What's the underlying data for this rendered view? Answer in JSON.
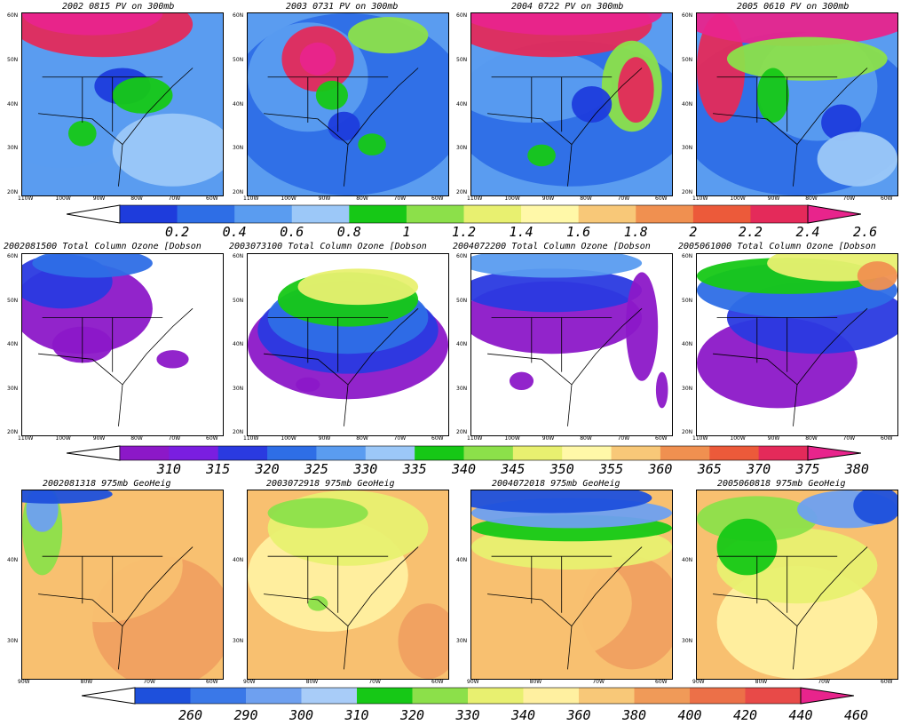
{
  "rows": [
    {
      "id": "pv",
      "panels": [
        {
          "title": "2002 0815 PV on 300mb",
          "lat_labels": [
            "60N",
            "50N",
            "40N",
            "30N",
            "20N"
          ],
          "lon_labels": [
            "110W",
            "100W",
            "90W",
            "80W",
            "70W",
            "60W"
          ]
        },
        {
          "title": "2003 0731 PV on 300mb",
          "lat_labels": [
            "60N",
            "50N",
            "40N",
            "30N",
            "20N"
          ],
          "lon_labels": [
            "110W",
            "100W",
            "90W",
            "80W",
            "70W",
            "60W"
          ]
        },
        {
          "title": "2004 0722 PV on 300mb",
          "lat_labels": [
            "60N",
            "50N",
            "40N",
            "30N",
            "20N"
          ],
          "lon_labels": [
            "110W",
            "100W",
            "90W",
            "80W",
            "70W",
            "60W"
          ]
        },
        {
          "title": "2005 0610 PV on 300mb",
          "lat_labels": [
            "60N",
            "50N",
            "40N",
            "30N",
            "20N"
          ],
          "lon_labels": [
            "110W",
            "100W",
            "90W",
            "80W",
            "70W",
            "60W"
          ]
        }
      ],
      "colorbar": {
        "labels": [
          "0.2",
          "0.4",
          "0.6",
          "0.8",
          "1",
          "1.2",
          "1.4",
          "1.6",
          "1.8",
          "2",
          "2.2",
          "2.4",
          "2.6"
        ],
        "colors": [
          "#ffffff",
          "#1e3cdc",
          "#2e6ee6",
          "#5a9cf0",
          "#9cc8f8",
          "#16c816",
          "#8ce04a",
          "#e8f070",
          "#fff8a8",
          "#f8c878",
          "#f09050",
          "#ec5a3a",
          "#e42a5a",
          "#e8248c"
        ]
      }
    },
    {
      "id": "ozone",
      "panels": [
        {
          "title": "2002081500 Total Column Ozone [Dobson",
          "lat_labels": [
            "60N",
            "50N",
            "40N",
            "30N",
            "20N"
          ],
          "lon_labels": [
            "110W",
            "100W",
            "90W",
            "80W",
            "70W",
            "60W"
          ]
        },
        {
          "title": "2003073100 Total Column Ozone [Dobson",
          "lat_labels": [
            "60N",
            "50N",
            "40N",
            "30N",
            "20N"
          ],
          "lon_labels": [
            "110W",
            "100W",
            "90W",
            "80W",
            "70W",
            "60W"
          ]
        },
        {
          "title": "2004072200 Total Column Ozone [Dobson",
          "lat_labels": [
            "60N",
            "50N",
            "40N",
            "30N",
            "20N"
          ],
          "lon_labels": [
            "110W",
            "100W",
            "90W",
            "80W",
            "70W",
            "60W"
          ]
        },
        {
          "title": "2005061000 Total Column Ozone [Dobson",
          "lat_labels": [
            "60N",
            "50N",
            "40N",
            "30N",
            "20N"
          ],
          "lon_labels": [
            "110W",
            "100W",
            "90W",
            "80W",
            "70W",
            "60W"
          ]
        }
      ],
      "colorbar": {
        "labels": [
          "310",
          "315",
          "320",
          "325",
          "330",
          "335",
          "340",
          "345",
          "350",
          "355",
          "360",
          "365",
          "370",
          "375",
          "380"
        ],
        "colors": [
          "#ffffff",
          "#8c18c8",
          "#7a1ee0",
          "#2a3ae0",
          "#2e6ee6",
          "#5a9cf0",
          "#9cc8f8",
          "#16c816",
          "#8ce04a",
          "#e8f070",
          "#fff8a8",
          "#f8c878",
          "#f09050",
          "#ec5a3a",
          "#e42a5a",
          "#e8248c"
        ]
      }
    },
    {
      "id": "geoheight",
      "panels": [
        {
          "title": "2002081318 975mb GeoHeig",
          "lat_labels": [
            "40N",
            "30N"
          ],
          "lon_labels": [
            "90W",
            "80W",
            "70W",
            "60W"
          ]
        },
        {
          "title": "2003072918 975mb GeoHeig",
          "lat_labels": [
            "40N",
            "30N"
          ],
          "lon_labels": [
            "90W",
            "80W",
            "70W",
            "60W"
          ]
        },
        {
          "title": "2004072018 975mb GeoHeig",
          "lat_labels": [
            "40N",
            "30N"
          ],
          "lon_labels": [
            "90W",
            "80W",
            "70W",
            "60W"
          ]
        },
        {
          "title": "2005060818 975mb GeoHeig",
          "lat_labels": [
            "40N",
            "30N"
          ],
          "lon_labels": [
            "90W",
            "80W",
            "70W",
            "60W"
          ]
        }
      ],
      "colorbar": {
        "labels": [
          "260",
          "290",
          "300",
          "310",
          "320",
          "330",
          "340",
          "360",
          "380",
          "400",
          "420",
          "440",
          "460"
        ],
        "colors": [
          "#ffffff",
          "#1e50dc",
          "#3a78e8",
          "#6ea0f0",
          "#a8ccf8",
          "#16c816",
          "#8ce04a",
          "#e8f070",
          "#fff0a0",
          "#f8c878",
          "#f09a58",
          "#ec7048",
          "#e84a48",
          "#e8248c"
        ]
      }
    }
  ],
  "row_styles": {
    "pv": {
      "field_colors": [
        "#2e6ee6",
        "#5a9cf0",
        "#1e3cdc",
        "#16c816",
        "#e42a5a",
        "#e8248c",
        "#8ce04a",
        "#9cc8f8"
      ]
    },
    "ozone": {
      "field_colors": [
        "#8c18c8",
        "#2a3ae0",
        "#2e6ee6",
        "#5a9cf0",
        "#16c816",
        "#e8f070",
        "#f09050",
        "#e8248c"
      ]
    },
    "geoheight": {
      "field_colors": [
        "#f0a060",
        "#f8c070",
        "#fff0a0",
        "#e8f070",
        "#8ce04a",
        "#16c816",
        "#6ea0f0",
        "#1e50dc"
      ]
    }
  }
}
